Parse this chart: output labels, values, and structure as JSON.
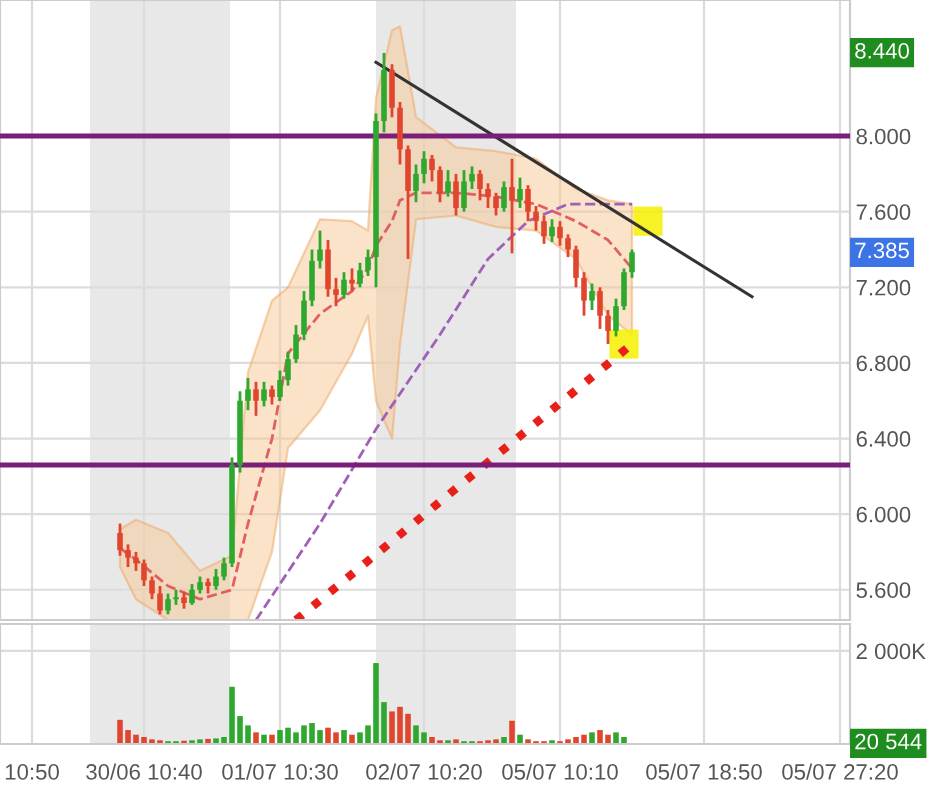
{
  "chart_data": [
    {
      "type": "candlestick",
      "categories": [
        null,
        null,
        null,
        null,
        null,
        null,
        null,
        null,
        null,
        null,
        null,
        null,
        null,
        null,
        null,
        null,
        null,
        null,
        null,
        null,
        null,
        null,
        null,
        null,
        null,
        null,
        null,
        null,
        null,
        null,
        null,
        null,
        null,
        null,
        null,
        null,
        null,
        null,
        null,
        null,
        null,
        null,
        null,
        null,
        null,
        null,
        null,
        null,
        null,
        null,
        null,
        null,
        null,
        null,
        null,
        null,
        null,
        null,
        null,
        null,
        null,
        null,
        null,
        null,
        null,
        null,
        null,
        null,
        null,
        null,
        null,
        null,
        null,
        null,
        null,
        null,
        null,
        null,
        null,
        null,
        null,
        null,
        null,
        null,
        null,
        null,
        null,
        null,
        null,
        null,
        null,
        null,
        null,
        null,
        null,
        null,
        null,
        null,
        null,
        null,
        null,
        null
      ],
      "ohlc": [
        null,
        null,
        null,
        null,
        null,
        null,
        null,
        null,
        null,
        null,
        null,
        [
          5.9,
          5.95,
          5.78,
          5.81
        ],
        [
          5.81,
          5.84,
          5.72,
          5.77
        ],
        [
          5.77,
          5.8,
          5.7,
          5.74
        ],
        [
          5.74,
          5.76,
          5.62,
          5.65
        ],
        [
          5.65,
          5.67,
          5.55,
          5.58
        ],
        [
          5.58,
          5.62,
          5.47,
          5.49
        ],
        [
          5.49,
          5.58,
          5.47,
          5.55
        ],
        [
          5.55,
          5.6,
          5.52,
          5.56
        ],
        [
          5.56,
          5.59,
          5.5,
          5.53
        ],
        [
          5.53,
          5.63,
          5.52,
          5.6
        ],
        [
          5.6,
          5.67,
          5.58,
          5.64
        ],
        [
          5.64,
          5.66,
          5.58,
          5.62
        ],
        [
          5.62,
          5.71,
          5.6,
          5.67
        ],
        [
          5.67,
          5.77,
          5.65,
          5.74
        ],
        [
          5.74,
          6.3,
          5.72,
          6.26
        ],
        [
          6.26,
          6.65,
          6.22,
          6.6
        ],
        [
          6.6,
          6.72,
          6.55,
          6.66
        ],
        [
          6.66,
          6.7,
          6.52,
          6.6
        ],
        [
          6.6,
          6.7,
          6.57,
          6.66
        ],
        [
          6.66,
          6.68,
          6.58,
          6.62
        ],
        [
          6.62,
          6.76,
          6.6,
          6.71
        ],
        [
          6.71,
          6.86,
          6.68,
          6.82
        ],
        [
          6.82,
          7.0,
          6.8,
          6.95
        ],
        [
          6.95,
          7.18,
          6.92,
          7.13
        ],
        [
          7.13,
          7.4,
          7.1,
          7.34
        ],
        [
          7.34,
          7.5,
          7.3,
          7.4
        ],
        [
          7.4,
          7.45,
          7.15,
          7.19
        ],
        [
          7.19,
          7.25,
          7.1,
          7.16
        ],
        [
          7.16,
          7.28,
          7.14,
          7.24
        ],
        [
          7.24,
          7.3,
          7.18,
          7.22
        ],
        [
          7.22,
          7.33,
          7.2,
          7.29
        ],
        [
          7.29,
          7.4,
          7.26,
          7.36
        ],
        [
          7.36,
          8.12,
          7.2,
          8.08
        ],
        [
          8.08,
          8.44,
          8.02,
          8.35
        ],
        [
          8.35,
          8.38,
          8.1,
          8.15
        ],
        [
          8.15,
          8.18,
          7.85,
          7.93
        ],
        [
          7.93,
          7.95,
          7.35,
          7.71
        ],
        [
          7.71,
          7.85,
          7.65,
          7.8
        ],
        [
          7.8,
          7.92,
          7.75,
          7.88
        ],
        [
          7.88,
          7.9,
          7.76,
          7.82
        ],
        [
          7.82,
          7.84,
          7.65,
          7.7
        ],
        [
          7.7,
          7.82,
          7.68,
          7.76
        ],
        [
          7.76,
          7.8,
          7.58,
          7.62
        ],
        [
          7.62,
          7.82,
          7.6,
          7.76
        ],
        [
          7.76,
          7.84,
          7.72,
          7.8
        ],
        [
          7.8,
          7.82,
          7.66,
          7.72
        ],
        [
          7.72,
          7.75,
          7.62,
          7.68
        ],
        [
          7.68,
          7.7,
          7.58,
          7.62
        ],
        [
          7.62,
          7.76,
          7.6,
          7.73
        ],
        [
          7.73,
          7.88,
          7.38,
          7.66
        ],
        [
          7.66,
          7.78,
          7.62,
          7.72
        ],
        [
          7.72,
          7.74,
          7.55,
          7.6
        ],
        [
          7.6,
          7.63,
          7.5,
          7.55
        ],
        [
          7.55,
          7.58,
          7.43,
          7.47
        ],
        [
          7.47,
          7.56,
          7.44,
          7.52
        ],
        [
          7.52,
          7.55,
          7.42,
          7.46
        ],
        [
          7.46,
          7.48,
          7.36,
          7.4
        ],
        [
          7.4,
          7.42,
          7.2,
          7.25
        ],
        [
          7.25,
          7.28,
          7.05,
          7.13
        ],
        [
          7.13,
          7.22,
          7.08,
          7.18
        ],
        [
          7.18,
          7.2,
          6.98,
          7.05
        ],
        [
          7.05,
          7.08,
          6.9,
          6.97
        ],
        [
          6.97,
          7.14,
          6.94,
          7.1
        ],
        [
          7.1,
          7.3,
          7.08,
          7.28
        ],
        [
          7.28,
          7.4,
          7.25,
          7.385
        ],
        null,
        null,
        null,
        null,
        null,
        null,
        null,
        null,
        null,
        null,
        null,
        null,
        null,
        null,
        null,
        null,
        null,
        null,
        null,
        null,
        null,
        null,
        null,
        null,
        null,
        null
      ],
      "colors": [
        null,
        null,
        null,
        null,
        null,
        null,
        null,
        null,
        null,
        null,
        null,
        "#e0452e",
        "#e0452e",
        "#e0452e",
        "#e0452e",
        "#e0452e",
        "#e0452e",
        "#2ea82e",
        "#2ea82e",
        "#e0452e",
        "#2ea82e",
        "#2ea82e",
        "#e0452e",
        "#2ea82e",
        "#2ea82e",
        "#2ea82e",
        "#2ea82e",
        "#2ea82e",
        "#e0452e",
        "#2ea82e",
        "#e0452e",
        "#2ea82e",
        "#2ea82e",
        "#2ea82e",
        "#2ea82e",
        "#2ea82e",
        "#2ea82e",
        "#e0452e",
        "#e0452e",
        "#2ea82e",
        "#e0452e",
        "#2ea82e",
        "#2ea82e",
        "#2ea82e",
        "#2ea82e",
        "#e0452e",
        "#e0452e",
        "#e0452e",
        "#2ea82e",
        "#2ea82e",
        "#e0452e",
        "#e0452e",
        "#2ea82e",
        "#e0452e",
        "#2ea82e",
        "#2ea82e",
        "#e0452e",
        "#e0452e",
        "#e0452e",
        "#2ea82e",
        "#e0452e",
        "#2ea82e",
        "#e0452e",
        "#e0452e",
        "#e0452e",
        "#2ea82e",
        "#e0452e",
        "#e0452e",
        "#e0452e",
        "#e0452e",
        "#2ea82e",
        "#e0452e",
        "#e0452e",
        "#2ea82e",
        "#2ea82e",
        "#2ea82e",
        null,
        null,
        null,
        null,
        null,
        null,
        null,
        null,
        null,
        null,
        null,
        null,
        null,
        null,
        null,
        null,
        null,
        null,
        null,
        null,
        null,
        null,
        null,
        null,
        null,
        null
      ],
      "series": [
        {
          "type": "line",
          "color": "#e06060",
          "line_style": "dashed",
          "values": [
            null,
            null,
            null,
            null,
            null,
            null,
            null,
            null,
            null,
            null,
            null,
            5.82,
            null,
            5.76,
            null,
            null,
            null,
            5.62,
            null,
            null,
            null,
            5.55,
            null,
            null,
            null,
            5.6,
            null,
            5.95,
            null,
            null,
            6.4,
            null,
            6.85,
            null,
            null,
            null,
            7.06,
            null,
            null,
            null,
            7.18,
            null,
            7.3,
            7.42,
            null,
            7.55,
            7.66,
            null,
            7.7,
            null,
            null,
            null,
            null,
            7.7,
            null,
            null,
            null,
            null,
            7.68,
            null,
            null,
            null,
            null,
            7.64,
            null,
            null,
            null,
            null,
            7.55,
            null,
            null,
            null,
            7.45,
            null,
            null,
            7.3,
            null,
            null,
            null,
            null,
            null,
            null,
            null,
            null,
            null,
            null,
            null,
            null,
            null,
            null,
            null,
            null,
            null,
            null,
            null,
            null,
            null,
            null,
            null,
            null,
            null,
            null
          ],
          "upper": [
            null,
            null,
            null,
            null,
            null,
            null,
            null,
            null,
            null,
            null,
            null,
            5.92,
            null,
            5.97,
            null,
            null,
            null,
            5.9,
            null,
            null,
            null,
            5.7,
            null,
            null,
            null,
            5.78,
            null,
            6.75,
            null,
            null,
            7.13,
            null,
            7.2,
            null,
            null,
            null,
            7.56,
            null,
            null,
            null,
            7.55,
            null,
            7.5,
            8.2,
            null,
            8.56,
            8.58,
            null,
            8.1,
            null,
            null,
            null,
            null,
            7.94,
            null,
            null,
            null,
            null,
            7.92,
            null,
            null,
            null,
            null,
            7.88,
            null,
            null,
            null,
            null,
            7.72,
            null,
            null,
            null,
            7.66,
            null,
            null,
            7.64,
            null,
            null,
            null,
            null,
            null,
            null,
            null,
            null,
            null,
            null,
            null,
            null,
            null,
            null,
            null,
            null,
            null,
            null,
            null,
            null,
            null,
            null,
            null,
            null,
            null,
            null
          ],
          "lower": [
            null,
            null,
            null,
            null,
            null,
            null,
            null,
            null,
            null,
            null,
            null,
            5.72,
            null,
            5.55,
            null,
            null,
            null,
            5.44,
            null,
            null,
            null,
            5.44,
            null,
            null,
            null,
            5.44,
            null,
            5.44,
            null,
            null,
            5.8,
            null,
            6.35,
            null,
            null,
            null,
            6.55,
            null,
            null,
            null,
            6.85,
            null,
            7.05,
            6.6,
            null,
            6.4,
            6.9,
            null,
            7.56,
            null,
            null,
            null,
            null,
            7.58,
            null,
            null,
            null,
            null,
            7.52,
            null,
            null,
            null,
            null,
            7.5,
            null,
            null,
            null,
            null,
            7.35,
            null,
            null,
            null,
            7.05,
            null,
            null,
            6.95,
            null,
            null,
            null,
            null,
            null,
            null,
            null,
            null,
            null,
            null,
            null,
            null,
            null,
            null,
            null,
            null,
            null,
            null,
            null,
            null,
            null,
            null,
            null,
            null,
            null,
            null
          ]
        },
        {
          "type": "line",
          "color": "#a060b8",
          "line_style": "dashed",
          "values": [
            null,
            null,
            null,
            null,
            null,
            null,
            null,
            null,
            null,
            null,
            null,
            null,
            null,
            null,
            null,
            null,
            null,
            null,
            null,
            null,
            null,
            null,
            null,
            null,
            null,
            null,
            null,
            null,
            5.44,
            null,
            null,
            null,
            null,
            null,
            null,
            null,
            5.95,
            null,
            null,
            null,
            null,
            null,
            null,
            6.45,
            null,
            null,
            null,
            null,
            null,
            null,
            null,
            6.95,
            null,
            null,
            null,
            null,
            null,
            7.35,
            null,
            null,
            null,
            null,
            7.55,
            null,
            null,
            null,
            null,
            7.64,
            null,
            null,
            null,
            null,
            null,
            null,
            null,
            7.64,
            null,
            null,
            null,
            null,
            null,
            null,
            null,
            null,
            null,
            null,
            null,
            null,
            null,
            null,
            null,
            null,
            null,
            null,
            null,
            null,
            null,
            null,
            null,
            null,
            null,
            null
          ]
        },
        {
          "type": "line",
          "color": "#e8201a",
          "line_style": "dotted",
          "values": [
            null,
            null,
            null,
            null,
            null,
            null,
            null,
            null,
            null,
            null,
            null,
            null,
            null,
            null,
            null,
            null,
            null,
            null,
            null,
            null,
            null,
            null,
            null,
            null,
            null,
            null,
            null,
            null,
            null,
            null,
            null,
            null,
            null,
            5.44,
            null,
            null,
            null,
            null,
            null,
            null,
            null,
            null,
            null,
            null,
            null,
            null,
            null,
            null,
            null,
            null,
            null,
            null,
            null,
            null,
            null,
            null,
            null,
            null,
            null,
            null,
            null,
            null,
            null,
            null,
            null,
            null,
            null,
            null,
            null,
            null,
            null,
            null,
            null,
            null,
            null,
            6.9,
            null,
            null,
            null,
            null,
            null,
            null,
            null,
            null,
            null,
            null,
            null,
            null,
            null,
            null,
            null,
            null,
            null,
            null,
            null,
            null,
            null,
            null,
            null,
            null,
            null,
            null
          ]
        },
        {
          "type": "line",
          "color": "#333333",
          "line_style": "solid",
          "values": [
            null,
            null,
            null,
            null,
            null,
            null,
            null,
            null,
            null,
            null,
            null,
            null,
            null,
            null,
            null,
            null,
            null,
            null,
            null,
            null,
            null,
            null,
            null,
            null,
            null,
            null,
            null,
            null,
            null,
            null,
            null,
            null,
            null,
            null,
            null,
            null,
            null,
            null,
            null,
            null,
            null,
            null,
            null,
            8.39,
            null,
            null,
            null,
            null,
            null,
            null,
            null,
            null,
            null,
            null,
            null,
            null,
            null,
            null,
            null,
            null,
            null,
            null,
            null,
            null,
            null,
            null,
            null,
            null,
            null,
            null,
            null,
            null,
            null,
            null,
            null,
            null,
            null,
            null,
            null,
            null,
            null,
            null,
            null,
            null,
            null,
            null,
            null,
            null,
            null,
            null,
            7.15,
            null,
            null,
            null,
            null,
            null,
            null,
            null,
            null,
            null,
            null,
            null
          ]
        },
        {
          "type": "scatter",
          "color": "#f5f000",
          "marker": "square",
          "values": [
            null,
            null,
            null,
            null,
            null,
            null,
            null,
            null,
            null,
            null,
            null,
            null,
            null,
            null,
            null,
            null,
            null,
            null,
            null,
            null,
            null,
            null,
            null,
            null,
            null,
            null,
            null,
            null,
            null,
            null,
            null,
            null,
            null,
            null,
            null,
            null,
            null,
            null,
            null,
            null,
            null,
            null,
            null,
            null,
            null,
            null,
            null,
            null,
            null,
            null,
            null,
            null,
            null,
            null,
            null,
            null,
            null,
            null,
            null,
            null,
            null,
            null,
            null,
            null,
            null,
            null,
            null,
            null,
            null,
            null,
            null,
            null,
            null,
            null,
            6.9,
            null,
            null,
            7.55,
            null,
            null,
            null,
            null,
            null,
            null,
            null,
            null,
            null,
            null,
            null,
            null,
            null,
            null,
            null,
            null,
            null,
            null,
            null,
            null,
            null,
            null,
            null,
            null
          ]
        }
      ],
      "ref_lines": [
        {
          "axis": "y",
          "value": 8.0,
          "color": "#7a1e7a"
        },
        {
          "axis": "y",
          "value": 6.26,
          "color": "#7a1e7a"
        }
      ],
      "annotations": [
        "8.440",
        "7.385"
      ],
      "ylim": [
        5.44,
        8.72
      ],
      "yticks": [
        {
          "value": 5.6,
          "label": "5.600"
        },
        {
          "value": 6.0,
          "label": "6.000"
        },
        {
          "value": 6.4,
          "label": "6.400"
        },
        {
          "value": 6.8,
          "label": "6.800"
        },
        {
          "value": 7.2,
          "label": "7.200"
        },
        {
          "value": 7.6,
          "label": "7.600"
        },
        {
          "value": 8.0,
          "label": "8.000"
        }
      ],
      "tick_labels": "y",
      "grid": true
    },
    {
      "type": "bar",
      "categories": [
        "10:50",
        null,
        null,
        null,
        null,
        null,
        null,
        null,
        null,
        null,
        null,
        null,
        null,
        null,
        "30/06 10:40",
        null,
        null,
        null,
        null,
        null,
        null,
        null,
        null,
        null,
        null,
        null,
        null,
        null,
        null,
        null,
        null,
        "01/07 10:30",
        null,
        null,
        null,
        null,
        null,
        null,
        null,
        null,
        null,
        null,
        null,
        null,
        null,
        null,
        null,
        null,
        null,
        "02/07 10:20",
        null,
        null,
        null,
        null,
        null,
        null,
        null,
        null,
        null,
        null,
        null,
        null,
        null,
        null,
        null,
        null,
        "05/07 10:10",
        null,
        null,
        null,
        null,
        null,
        null,
        null,
        null,
        null,
        null,
        null,
        null,
        null,
        null,
        null,
        null,
        null,
        "05/07 18:50",
        null,
        null,
        null,
        null,
        null,
        null,
        null,
        null,
        null,
        null,
        null,
        null,
        null,
        null,
        null,
        null,
        "05/07 27:20"
      ],
      "values": [
        null,
        null,
        null,
        null,
        null,
        null,
        null,
        null,
        null,
        null,
        null,
        520,
        300,
        200,
        150,
        100,
        80,
        60,
        60,
        70,
        80,
        100,
        110,
        120,
        150,
        1230,
        600,
        400,
        250,
        200,
        200,
        300,
        350,
        250,
        400,
        450,
        300,
        350,
        250,
        300,
        200,
        250,
        400,
        1740,
        900,
        700,
        800,
        650,
        400,
        250,
        150,
        80,
        80,
        100,
        60,
        60,
        60,
        80,
        100,
        150,
        500,
        200,
        100,
        60,
        60,
        80,
        60,
        100,
        150,
        200,
        250,
        300,
        200,
        250,
        150,
        20.544,
        null,
        null,
        null,
        null,
        null,
        null,
        null,
        null,
        null,
        null,
        null,
        null,
        null,
        null,
        null,
        null,
        null,
        null,
        null,
        null,
        null,
        null,
        null,
        null,
        null,
        null
      ],
      "colors": [
        null,
        null,
        null,
        null,
        null,
        null,
        null,
        null,
        null,
        null,
        null,
        "#e0452e",
        "#e0452e",
        "#e0452e",
        "#e0452e",
        "#e0452e",
        "#e0452e",
        "#2ea82e",
        "#2ea82e",
        "#e0452e",
        "#2ea82e",
        "#2ea82e",
        "#e0452e",
        "#2ea82e",
        "#2ea82e",
        "#2ea82e",
        "#2ea82e",
        "#2ea82e",
        "#e0452e",
        "#2ea82e",
        "#e0452e",
        "#2ea82e",
        "#2ea82e",
        "#2ea82e",
        "#2ea82e",
        "#2ea82e",
        "#2ea82e",
        "#e0452e",
        "#e0452e",
        "#2ea82e",
        "#e0452e",
        "#2ea82e",
        "#2ea82e",
        "#2ea82e",
        "#2ea82e",
        "#e0452e",
        "#e0452e",
        "#e0452e",
        "#2ea82e",
        "#2ea82e",
        "#e0452e",
        "#e0452e",
        "#2ea82e",
        "#e0452e",
        "#2ea82e",
        "#2ea82e",
        "#e0452e",
        "#e0452e",
        "#e0452e",
        "#2ea82e",
        "#e0452e",
        "#2ea82e",
        "#e0452e",
        "#e0452e",
        "#e0452e",
        "#2ea82e",
        "#e0452e",
        "#e0452e",
        "#e0452e",
        "#e0452e",
        "#2ea82e",
        "#e0452e",
        "#e0452e",
        "#2ea82e",
        "#2ea82e",
        "#2ea82e",
        null,
        null,
        null,
        null,
        null,
        null,
        null,
        null,
        null,
        null,
        null,
        null,
        null,
        null,
        null,
        null,
        null,
        null,
        null,
        null,
        null,
        null,
        null,
        null,
        null,
        null
      ],
      "annotations": [
        "20 544"
      ],
      "ylim": [
        0,
        2580
      ],
      "yticks": [
        {
          "value": 2000,
          "label": "2 000K"
        }
      ],
      "grid": true
    }
  ]
}
